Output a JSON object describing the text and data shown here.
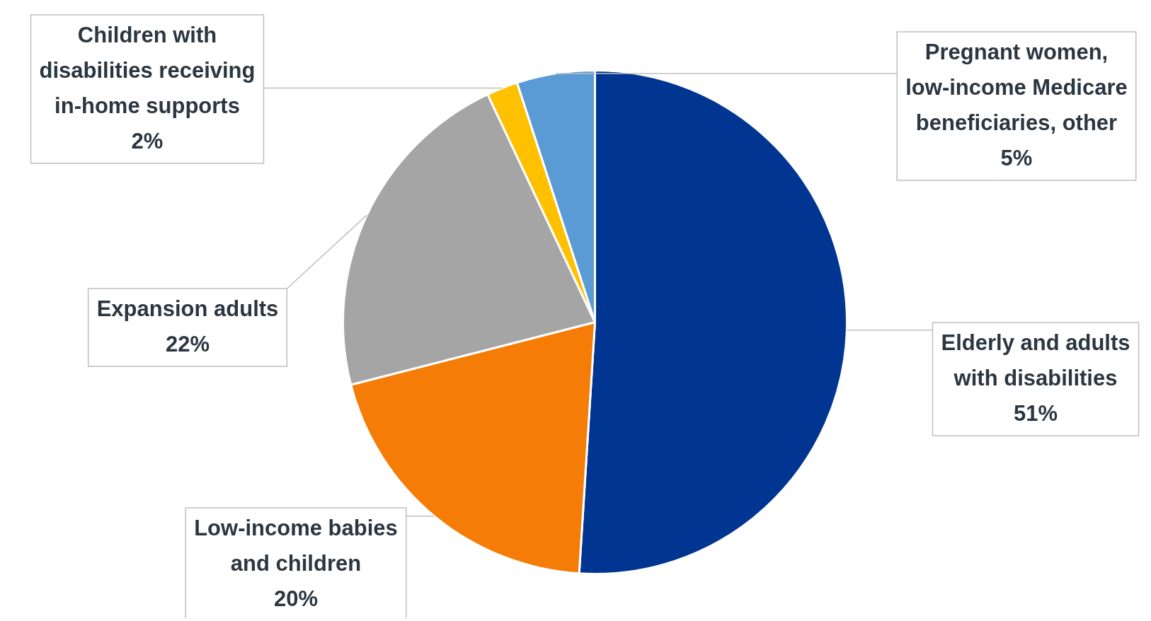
{
  "chart_data": {
    "type": "pie",
    "categories": [
      "Elderly and adults with disabilities",
      "Low-income babies and children",
      "Expansion adults",
      "Children with disabilities receiving in-home supports",
      "Pregnant women, low-income Medicare beneficiaries, other"
    ],
    "values": [
      51,
      20,
      22,
      2,
      5
    ],
    "value_labels": [
      "51%",
      "20%",
      "22%",
      "2%",
      "5%"
    ],
    "colors": [
      "#003591",
      "#f57c06",
      "#a5a5a5",
      "#ffc000",
      "#5b9bd5"
    ],
    "legend": false
  }
}
